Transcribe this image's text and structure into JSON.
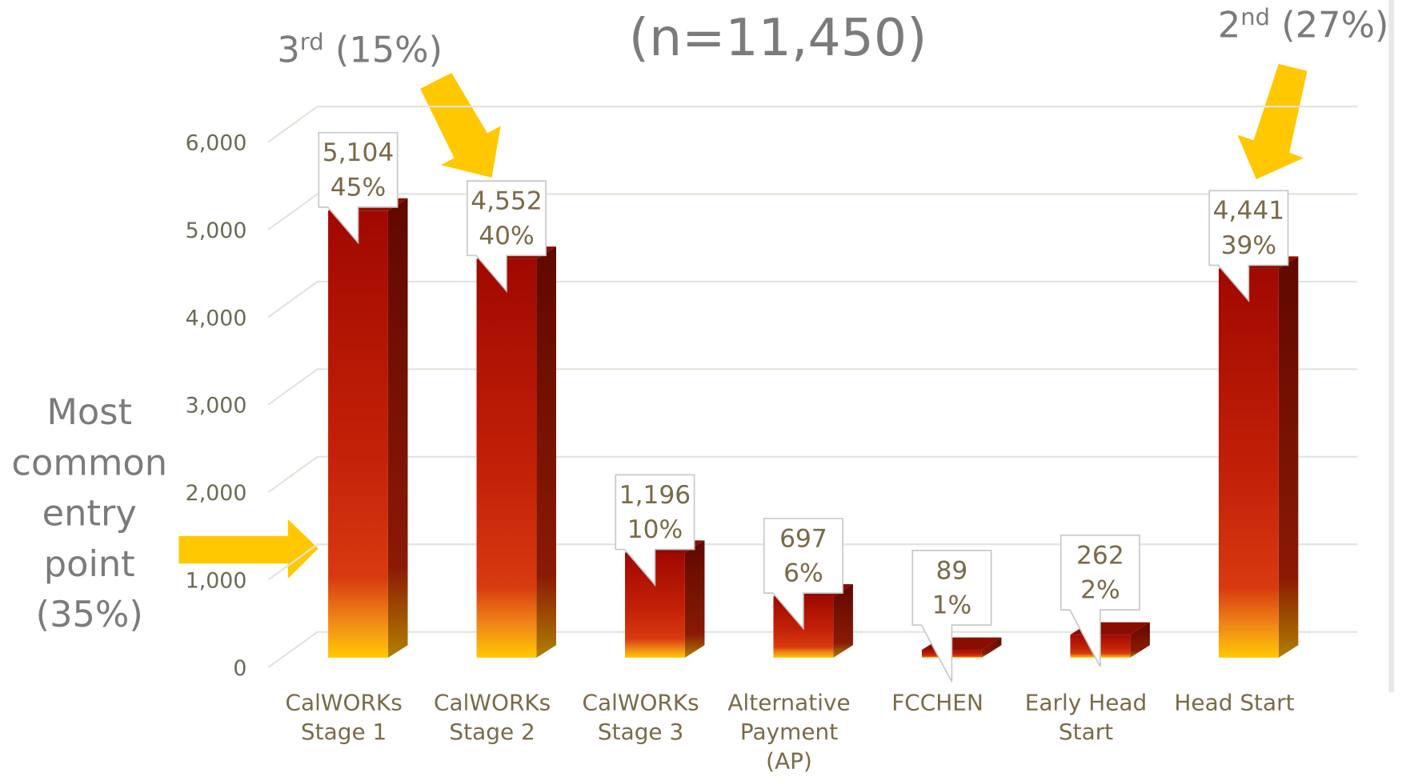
{
  "chart_data": {
    "type": "bar3d",
    "title": "(n=11,450)",
    "categories": [
      "CalWORKs\nStage 1",
      "CalWORKs\nStage 2",
      "CalWORKs\nStage 3",
      "Alternative\nPayment\n(AP)",
      "FCCHEN",
      "Early Head\nStart",
      "Head Start"
    ],
    "values": [
      5104,
      4552,
      1196,
      697,
      89,
      262,
      4441
    ],
    "value_labels": [
      "5,104",
      "4,552",
      "1,196",
      "697",
      "89",
      "262",
      "4,441"
    ],
    "percent_labels": [
      "45%",
      "40%",
      "10%",
      "6%",
      "1%",
      "2%",
      "39%"
    ],
    "ylim": [
      0,
      6000
    ],
    "yticks": [
      0,
      {
        "value": 1000,
        "label": "1,000"
      },
      {
        "value": 2000,
        "label": "2,000"
      },
      {
        "value": 3000,
        "label": "3,000"
      },
      {
        "value": 4000,
        "label": "4,000"
      },
      {
        "value": 5000,
        "label": "5,000"
      },
      {
        "value": 6000,
        "label": "6,000"
      }
    ],
    "grid": true,
    "color": "#b01000",
    "annotations": {
      "third": {
        "rank": "3",
        "sup": "rd",
        "rest": " (15%)"
      },
      "second": {
        "rank": "2",
        "sup": "nd",
        "rest": " (27%)"
      },
      "entry": [
        "Most",
        "common",
        "entry",
        "point",
        "(35%)"
      ]
    }
  }
}
